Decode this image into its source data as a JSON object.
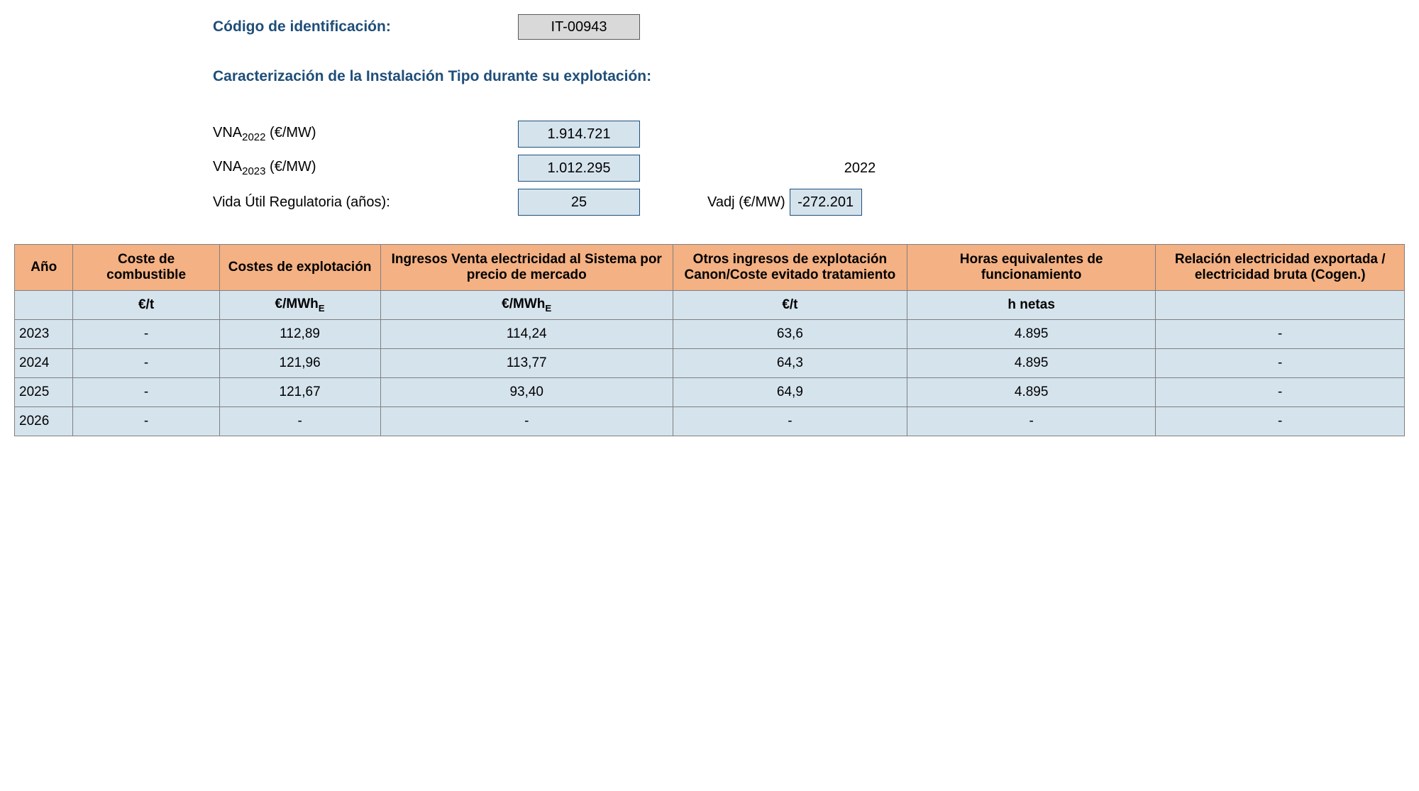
{
  "header": {
    "id_label": "Código de identificación:",
    "id_value": "IT-00943",
    "section_title": "Caracterización de la Instalación Tipo durante su explotación:"
  },
  "params": {
    "vna2022_label_prefix": "VNA",
    "vna2022_sub": "2022",
    "vna2022_unit": " (€/MW)",
    "vna2022_value": "1.914.721",
    "vna2023_label_prefix": "VNA",
    "vna2023_sub": "2023",
    "vna2023_unit": " (€/MW)",
    "vna2023_value": "1.012.295",
    "vida_label": "Vida Útil Regulatoria (años):",
    "vida_value": "25",
    "side_year": "2022",
    "vadj_label": "Vadj (€/MW)",
    "vadj_value": "-272.201"
  },
  "table": {
    "headers": {
      "ano": "Año",
      "comb": "Coste de combustible",
      "expl": "Costes de explotación",
      "ingr": "Ingresos Venta electricidad al Sistema por precio de mercado",
      "otros": "Otros ingresos de explotación Canon/Coste evitado tratamiento",
      "horas": "Horas equivalentes de funcionamiento",
      "rel": "Relación electricidad exportada / electricidad bruta (Cogen.)"
    },
    "units": {
      "ano": "",
      "comb": "€/t",
      "expl_prefix": "€/MWh",
      "expl_sub": "E",
      "ingr_prefix": "€/MWh",
      "ingr_sub": "E",
      "otros": "€/t",
      "horas": "h netas",
      "rel": ""
    },
    "rows": [
      {
        "ano": "2023",
        "comb": "-",
        "expl": "112,89",
        "ingr": "114,24",
        "otros": "63,6",
        "horas": "4.895",
        "rel": "-"
      },
      {
        "ano": "2024",
        "comb": "-",
        "expl": "121,96",
        "ingr": "113,77",
        "otros": "64,3",
        "horas": "4.895",
        "rel": "-"
      },
      {
        "ano": "2025",
        "comb": "-",
        "expl": "121,67",
        "ingr": "93,40",
        "otros": "64,9",
        "horas": "4.895",
        "rel": "-"
      },
      {
        "ano": "2026",
        "comb": "-",
        "expl": "-",
        "ingr": "-",
        "otros": "-",
        "horas": "-",
        "rel": "-"
      }
    ]
  },
  "style": {
    "header_color": "#1f4e79",
    "code_box_bg": "#d9d9d9",
    "value_box_bg": "#d5e3ed",
    "table_header_bg": "#f4b183",
    "table_cell_bg": "#d5e3ed",
    "border_color": "#808080"
  }
}
